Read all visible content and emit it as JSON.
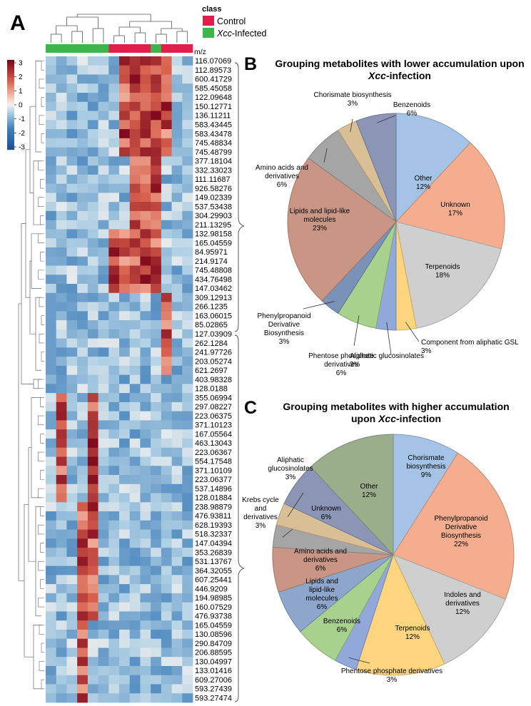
{
  "panel_a": {
    "label": "A",
    "legend_title": "class",
    "groups": [
      {
        "name": "Control",
        "color": "#e0204c"
      },
      {
        "name": "Xcc-Infected",
        "color": "#3db54a"
      }
    ],
    "mz_header": "m/z",
    "color_scale": {
      "ticks": [
        "3",
        "2",
        "1",
        "0",
        "-1",
        "-2",
        "-3"
      ],
      "low": "#1f4e96",
      "mid": "#f4f1ee",
      "high": "#7a0319"
    },
    "column_classes": [
      "Xcc-Infected",
      "Xcc-Infected",
      "Xcc-Infected",
      "Xcc-Infected",
      "Xcc-Infected",
      "Xcc-Infected",
      "Control",
      "Control",
      "Control",
      "Control",
      "Xcc-Infected",
      "Control",
      "Control",
      "Control"
    ],
    "rows": [
      "116.07069",
      "112.89573",
      "600.41729",
      "585.45058",
      "122.09648",
      "150.12771",
      "136.11211",
      "583.43445",
      "583.43478",
      "745.48834",
      "745.48799",
      "377.18104",
      "332.33023",
      "111.11687",
      "926.58276",
      "149.02339",
      "537.53438",
      "304.29903",
      "211.13295",
      "132.98158",
      "165.04559",
      "84.95971",
      "214.9174",
      "745.48808",
      "434.76498",
      "147.03462",
      "309.12913",
      "266.1235",
      "163.06015",
      "85.02865",
      "127.03909",
      "262.1284",
      "241.97726",
      "203.05274",
      "621.2697",
      "403.98328",
      "128.0188",
      "355.06994",
      "297.08227",
      "223.06375",
      "371.10123",
      "167.05564",
      "463.13043",
      "223.06367",
      "554.17548",
      "371.10109",
      "223.06377",
      "537.14896",
      "128.01884",
      "238.98879",
      "476.93811",
      "628.19393",
      "518.32337",
      "147.04394",
      "353.26839",
      "531.13767",
      "364.32055",
      "607.25441",
      "446.9209",
      "194.98985",
      "160.07529",
      "476.93738",
      "165.04559",
      "130.08596",
      "290.84709",
      "206.88595",
      "130.04997",
      "133.01416",
      "609.27006",
      "593.27439",
      "593.27474"
    ]
  },
  "chart_data": [
    {
      "type": "pie",
      "panel": "B",
      "title_line1": "Grouping metabolites with lower accumulation upon",
      "title_line2_italic": "Xcc",
      "title_line2_rest": "-infection",
      "slices": [
        {
          "label": "Other",
          "value": 12,
          "pct": "12%",
          "color": "#a4c3e6"
        },
        {
          "label": "Unknown",
          "value": 17,
          "pct": "17%",
          "color": "#f4ad8e"
        },
        {
          "label": "Terpenoids",
          "value": 18,
          "pct": "18%",
          "color": "#cfcfcf"
        },
        {
          "label": "Component from aliphatic GSL",
          "value": 3,
          "pct": "3%",
          "color": "#fcd57e"
        },
        {
          "label": "Aliphatic glucosinolates",
          "value": 3,
          "pct": "3%",
          "color": "#93a8da"
        },
        {
          "label": "Phentose phosphate derivatives",
          "value": 6,
          "pct": "6%",
          "color": "#a9d18e"
        },
        {
          "label": "Phenylpropanoid Derivative Biosynthesis",
          "value": 3,
          "pct": "3%",
          "color": "#7a92b8"
        },
        {
          "label": "Lipids and lipid-like molecules",
          "value": 23,
          "pct": "23%",
          "color": "#c99585"
        },
        {
          "label": "Amino acids and derivatives",
          "value": 6,
          "pct": "6%",
          "color": "#a5a5a5"
        },
        {
          "label": "Chorismate biosynthesis",
          "value": 3,
          "pct": "3%",
          "color": "#d9bf96"
        },
        {
          "label": "Benzenoids",
          "value": 6,
          "pct": "6%",
          "color": "#8b95b5"
        }
      ]
    },
    {
      "type": "pie",
      "panel": "C",
      "title_line1": "Grouping metabolites with higher accumulation",
      "title_line2_pre": "upon ",
      "title_line2_italic": "Xcc",
      "title_line2_rest": "-infection",
      "slices": [
        {
          "label": "Chorismate biosynthesis",
          "value": 9,
          "pct": "9%",
          "color": "#a4c3e6"
        },
        {
          "label": "Phenylpropanoid Derivative Biosynthesis",
          "value": 22,
          "pct": "22%",
          "color": "#f4ad8e"
        },
        {
          "label": "Indoles and derivatives",
          "value": 12,
          "pct": "12%",
          "color": "#cfcfcf"
        },
        {
          "label": "Terpenoids",
          "value": 12,
          "pct": "12%",
          "color": "#fcd57e"
        },
        {
          "label": "Phentose phosphate derivatives",
          "value": 3,
          "pct": "3%",
          "color": "#93a8da"
        },
        {
          "label": "Benzenoids",
          "value": 6,
          "pct": "6%",
          "color": "#a9d18e"
        },
        {
          "label": "Lipids and lipid-like molecules",
          "value": 6,
          "pct": "6%",
          "color": "#8ea6cc"
        },
        {
          "label": "Amino acids and derivatives",
          "value": 6,
          "pct": "6%",
          "color": "#c99585"
        },
        {
          "label": "Krebs cycle and derivatives",
          "value": 3,
          "pct": "3%",
          "color": "#a5a5a5"
        },
        {
          "label": "Aliphatic glucosinolates",
          "value": 3,
          "pct": "3%",
          "color": "#d9bf96"
        },
        {
          "label": "Unknown",
          "value": 6,
          "pct": "6%",
          "color": "#8b95b5"
        },
        {
          "label": "Other",
          "value": 12,
          "pct": "12%",
          "color": "#9aae8c"
        }
      ]
    }
  ]
}
